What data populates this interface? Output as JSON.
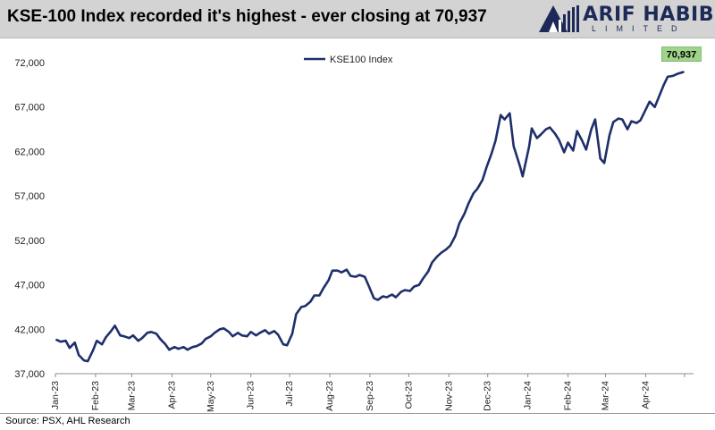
{
  "title": "KSE-100 Index recorded it's highest - ever closing at 70,937",
  "logo": {
    "name": "ARIF HABIB",
    "sub": "LIMITED"
  },
  "source": "Source: PSX, AHL Research",
  "colors": {
    "line": "#1f2f6b",
    "callout_fill": "#9fd48a",
    "header_bg": "#d3d3d3",
    "logo": "#1d2a57"
  },
  "chart_data": {
    "type": "line",
    "legend": "KSE100 Index",
    "legend_position": "top-center",
    "grid": false,
    "ylim": [
      37000,
      72000
    ],
    "y_ticks": [
      "37,000",
      "42,000",
      "47,000",
      "52,000",
      "57,000",
      "62,000",
      "67,000",
      "72,000"
    ],
    "x_ticks": [
      "Jan-23",
      "Feb-23",
      "Mar-23",
      "Apr-23",
      "May-23",
      "Jun-23",
      "Jul-23",
      "Aug-23",
      "Sep-23",
      "Oct-23",
      "Nov-23",
      "Dec-23",
      "Jan-24",
      "Feb-24",
      "Mar-24",
      "Apr-24"
    ],
    "annotation": {
      "text": "70,937",
      "date": "2024-04-30",
      "value": 70937
    },
    "series": [
      {
        "name": "KSE100 Index",
        "x": [
          "2023-01-02",
          "2023-01-05",
          "2023-01-09",
          "2023-01-12",
          "2023-01-16",
          "2023-01-19",
          "2023-01-23",
          "2023-01-26",
          "2023-01-30",
          "2023-02-02",
          "2023-02-06",
          "2023-02-09",
          "2023-02-13",
          "2023-02-16",
          "2023-02-20",
          "2023-02-23",
          "2023-02-27",
          "2023-03-02",
          "2023-03-06",
          "2023-03-09",
          "2023-03-13",
          "2023-03-16",
          "2023-03-20",
          "2023-03-23",
          "2023-03-27",
          "2023-03-30",
          "2023-04-03",
          "2023-04-06",
          "2023-04-10",
          "2023-04-13",
          "2023-04-17",
          "2023-04-20",
          "2023-04-24",
          "2023-04-27",
          "2023-05-01",
          "2023-05-04",
          "2023-05-08",
          "2023-05-11",
          "2023-05-15",
          "2023-05-18",
          "2023-05-22",
          "2023-05-25",
          "2023-05-29",
          "2023-06-01",
          "2023-06-05",
          "2023-06-08",
          "2023-06-12",
          "2023-06-15",
          "2023-06-19",
          "2023-06-22",
          "2023-06-26",
          "2023-06-29",
          "2023-07-03",
          "2023-07-06",
          "2023-07-10",
          "2023-07-13",
          "2023-07-17",
          "2023-07-20",
          "2023-07-24",
          "2023-07-27",
          "2023-07-31",
          "2023-08-03",
          "2023-08-07",
          "2023-08-10",
          "2023-08-14",
          "2023-08-17",
          "2023-08-21",
          "2023-08-24",
          "2023-08-28",
          "2023-08-31",
          "2023-09-04",
          "2023-09-07",
          "2023-09-11",
          "2023-09-14",
          "2023-09-18",
          "2023-09-21",
          "2023-09-25",
          "2023-09-28",
          "2023-10-02",
          "2023-10-05",
          "2023-10-09",
          "2023-10-12",
          "2023-10-16",
          "2023-10-19",
          "2023-10-23",
          "2023-10-26",
          "2023-10-30",
          "2023-11-02",
          "2023-11-06",
          "2023-11-09",
          "2023-11-13",
          "2023-11-16",
          "2023-11-20",
          "2023-11-23",
          "2023-11-27",
          "2023-11-30",
          "2023-12-04",
          "2023-12-07",
          "2023-12-11",
          "2023-12-14",
          "2023-12-18",
          "2023-12-21",
          "2023-12-26",
          "2023-12-28",
          "2024-01-02",
          "2024-01-04",
          "2024-01-08",
          "2024-01-11",
          "2024-01-15",
          "2024-01-18",
          "2024-01-22",
          "2024-01-25",
          "2024-01-29",
          "2024-02-01",
          "2024-02-05",
          "2024-02-08",
          "2024-02-12",
          "2024-02-15",
          "2024-02-19",
          "2024-02-22",
          "2024-02-26",
          "2024-02-29",
          "2024-03-04",
          "2024-03-07",
          "2024-03-11",
          "2024-03-14",
          "2024-03-18",
          "2024-03-21",
          "2024-03-25",
          "2024-03-28",
          "2024-04-01",
          "2024-04-04",
          "2024-04-08",
          "2024-04-15",
          "2024-04-18",
          "2024-04-22",
          "2024-04-25",
          "2024-04-30"
        ],
        "y": [
          40800,
          40600,
          40700,
          39900,
          40500,
          39100,
          38500,
          38400,
          39600,
          40700,
          40300,
          41100,
          41800,
          42400,
          41300,
          41200,
          41000,
          41300,
          40700,
          41000,
          41600,
          41700,
          41500,
          40900,
          40300,
          39700,
          40000,
          39800,
          40000,
          39700,
          40000,
          40100,
          40400,
          40900,
          41200,
          41600,
          42000,
          42100,
          41700,
          41200,
          41600,
          41300,
          41200,
          41700,
          41300,
          41600,
          41900,
          41500,
          41800,
          41400,
          40300,
          40200,
          41500,
          43700,
          44500,
          44600,
          45100,
          45800,
          45800,
          46600,
          47500,
          48600,
          48600,
          48400,
          48700,
          48000,
          47900,
          48100,
          47900,
          46900,
          45500,
          45300,
          45700,
          45600,
          45900,
          45600,
          46200,
          46400,
          46300,
          46800,
          47000,
          47700,
          48500,
          49500,
          50200,
          50600,
          51000,
          51400,
          52500,
          53900,
          55000,
          56100,
          57300,
          57800,
          58800,
          60200,
          61800,
          63200,
          66100,
          65600,
          66300,
          62600,
          60300,
          59200,
          62600,
          64600,
          63500,
          63900,
          64500,
          64700,
          64000,
          63300,
          61900,
          63000,
          62100,
          64300,
          63200,
          62200,
          64500,
          65600,
          61200,
          60700,
          63800,
          65300,
          65700,
          65600,
          64500,
          65400,
          65200,
          65500,
          66700,
          67600,
          67000,
          69500,
          70400,
          70500,
          70700,
          70937
        ]
      }
    ]
  }
}
